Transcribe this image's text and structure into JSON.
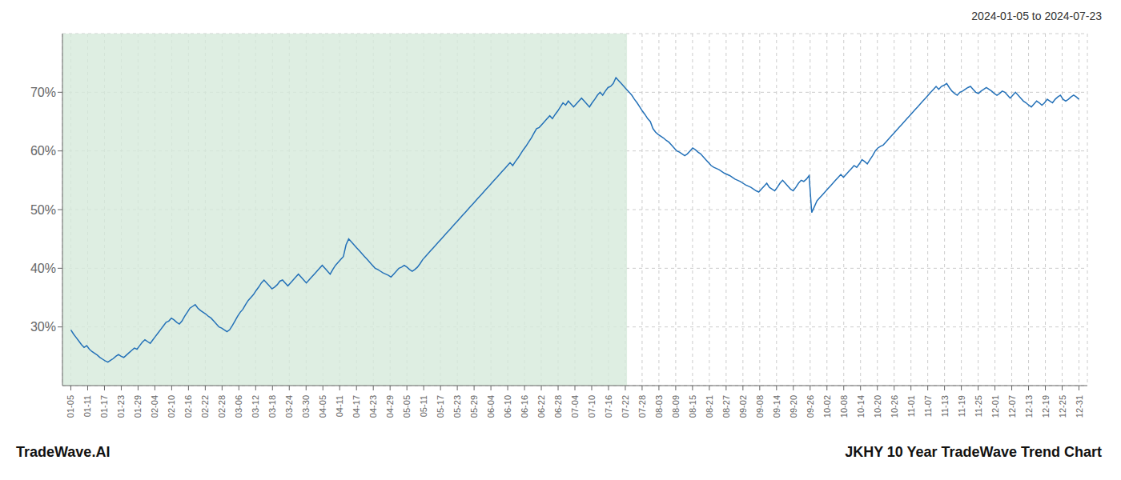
{
  "chart_data": {
    "type": "line",
    "title": "JKHY 10 Year TradeWave Trend Chart",
    "subtitle": "2024-01-05 to 2024-07-23",
    "annotations": [
      "TradeWave.AI"
    ],
    "color": "#2471b8",
    "grid": true,
    "xlim": [
      -0.5,
      60.5
    ],
    "xticks": [
      {
        "value": 0,
        "label": "01-05"
      },
      {
        "value": 1,
        "label": "01-11"
      },
      {
        "value": 2,
        "label": "01-17"
      },
      {
        "value": 3,
        "label": "01-23"
      },
      {
        "value": 4,
        "label": "01-29"
      },
      {
        "value": 5,
        "label": "02-04"
      },
      {
        "value": 6,
        "label": "02-10"
      },
      {
        "value": 7,
        "label": "02-16"
      },
      {
        "value": 8,
        "label": "02-22"
      },
      {
        "value": 9,
        "label": "02-28"
      },
      {
        "value": 10,
        "label": "03-06"
      },
      {
        "value": 11,
        "label": "03-12"
      },
      {
        "value": 12,
        "label": "03-18"
      },
      {
        "value": 13,
        "label": "03-24"
      },
      {
        "value": 14,
        "label": "03-30"
      },
      {
        "value": 15,
        "label": "04-05"
      },
      {
        "value": 16,
        "label": "04-11"
      },
      {
        "value": 17,
        "label": "04-17"
      },
      {
        "value": 18,
        "label": "04-23"
      },
      {
        "value": 19,
        "label": "04-29"
      },
      {
        "value": 20,
        "label": "05-05"
      },
      {
        "value": 21,
        "label": "05-11"
      },
      {
        "value": 22,
        "label": "05-17"
      },
      {
        "value": 23,
        "label": "05-23"
      },
      {
        "value": 24,
        "label": "05-29"
      },
      {
        "value": 25,
        "label": "06-04"
      },
      {
        "value": 26,
        "label": "06-10"
      },
      {
        "value": 27,
        "label": "06-16"
      },
      {
        "value": 28,
        "label": "06-22"
      },
      {
        "value": 29,
        "label": "06-28"
      },
      {
        "value": 30,
        "label": "07-04"
      },
      {
        "value": 31,
        "label": "07-10"
      },
      {
        "value": 32,
        "label": "07-16"
      },
      {
        "value": 33,
        "label": "07-22"
      },
      {
        "value": 34,
        "label": "07-28"
      },
      {
        "value": 35,
        "label": "08-03"
      },
      {
        "value": 36,
        "label": "08-09"
      },
      {
        "value": 37,
        "label": "08-15"
      },
      {
        "value": 38,
        "label": "08-21"
      },
      {
        "value": 39,
        "label": "08-27"
      },
      {
        "value": 40,
        "label": "09-02"
      },
      {
        "value": 41,
        "label": "09-08"
      },
      {
        "value": 42,
        "label": "09-14"
      },
      {
        "value": 43,
        "label": "09-20"
      },
      {
        "value": 44,
        "label": "09-26"
      },
      {
        "value": 45,
        "label": "10-02"
      },
      {
        "value": 46,
        "label": "10-08"
      },
      {
        "value": 47,
        "label": "10-14"
      },
      {
        "value": 48,
        "label": "10-20"
      },
      {
        "value": 49,
        "label": "10-26"
      },
      {
        "value": 50,
        "label": "11-01"
      },
      {
        "value": 51,
        "label": "11-07"
      },
      {
        "value": 52,
        "label": "11-13"
      },
      {
        "value": 53,
        "label": "11-19"
      },
      {
        "value": 54,
        "label": "11-25"
      },
      {
        "value": 55,
        "label": "12-01"
      },
      {
        "value": 56,
        "label": "12-07"
      },
      {
        "value": 57,
        "label": "12-13"
      },
      {
        "value": 58,
        "label": "12-19"
      },
      {
        "value": 59,
        "label": "12-25"
      },
      {
        "value": 60,
        "label": "12-31"
      }
    ],
    "ylim": [
      20,
      80
    ],
    "yticks": [
      {
        "value": 30,
        "label": "30%"
      },
      {
        "value": 40,
        "label": "40%"
      },
      {
        "value": 50,
        "label": "50%"
      },
      {
        "value": 60,
        "label": "60%"
      },
      {
        "value": 70,
        "label": "70%"
      }
    ],
    "shade": {
      "xlim": [
        -0.5,
        33.1
      ],
      "color": "#d6eadb"
    },
    "values": [
      29.5,
      28.8,
      28.2,
      27.6,
      27.0,
      26.5,
      26.8,
      26.2,
      25.8,
      25.5,
      25.2,
      24.8,
      24.5,
      24.2,
      24.0,
      24.3,
      24.6,
      25.0,
      25.3,
      25.0,
      24.8,
      25.2,
      25.6,
      26.0,
      26.4,
      26.2,
      26.8,
      27.4,
      27.8,
      27.5,
      27.2,
      27.8,
      28.4,
      29.0,
      29.6,
      30.2,
      30.8,
      31.0,
      31.5,
      31.2,
      30.8,
      30.5,
      31.0,
      31.8,
      32.5,
      33.2,
      33.5,
      33.8,
      33.2,
      32.8,
      32.5,
      32.2,
      31.8,
      31.5,
      31.0,
      30.5,
      30.0,
      29.8,
      29.5,
      29.2,
      29.5,
      30.2,
      31.0,
      31.8,
      32.5,
      33.0,
      33.8,
      34.5,
      35.0,
      35.5,
      36.2,
      36.8,
      37.5,
      38.0,
      37.5,
      37.0,
      36.5,
      36.8,
      37.2,
      37.8,
      38.0,
      37.5,
      37.0,
      37.5,
      38.0,
      38.5,
      39.0,
      38.5,
      38.0,
      37.5,
      38.0,
      38.5,
      39.0,
      39.5,
      40.0,
      40.5,
      40.0,
      39.5,
      39.0,
      39.8,
      40.5,
      41.0,
      41.5,
      42.0,
      44.0,
      45.0,
      44.5,
      44.0,
      43.5,
      43.0,
      42.5,
      42.0,
      41.5,
      41.0,
      40.5,
      40.0,
      39.8,
      39.5,
      39.2,
      39.0,
      38.8,
      38.5,
      39.0,
      39.5,
      40.0,
      40.2,
      40.5,
      40.2,
      39.8,
      39.5,
      39.8,
      40.2,
      40.8,
      41.5,
      42.0,
      42.5,
      43.0,
      43.5,
      44.0,
      44.5,
      45.0,
      45.5,
      46.0,
      46.5,
      47.0,
      47.5,
      48.0,
      48.5,
      49.0,
      49.5,
      50.0,
      50.5,
      51.0,
      51.5,
      52.0,
      52.5,
      53.0,
      53.5,
      54.0,
      54.5,
      55.0,
      55.5,
      56.0,
      56.5,
      57.0,
      57.5,
      58.0,
      57.5,
      58.2,
      58.8,
      59.5,
      60.2,
      60.8,
      61.5,
      62.2,
      63.0,
      63.8,
      64.0,
      64.5,
      65.0,
      65.5,
      66.0,
      65.5,
      66.2,
      66.8,
      67.5,
      68.2,
      67.8,
      68.5,
      68.0,
      67.5,
      68.0,
      68.5,
      69.0,
      68.5,
      68.0,
      67.5,
      68.2,
      68.8,
      69.5,
      70.0,
      69.5,
      70.2,
      70.8,
      71.0,
      71.5,
      72.5,
      72.0,
      71.5,
      71.0,
      70.5,
      70.0,
      69.5,
      68.8,
      68.2,
      67.5,
      66.8,
      66.2,
      65.5,
      65.0,
      63.8,
      63.2,
      62.8,
      62.5,
      62.2,
      61.8,
      61.5,
      61.0,
      60.5,
      60.0,
      59.8,
      59.5,
      59.2,
      59.5,
      60.0,
      60.5,
      60.2,
      59.8,
      59.5,
      59.0,
      58.5,
      58.0,
      57.5,
      57.2,
      57.0,
      56.8,
      56.5,
      56.2,
      56.0,
      55.8,
      55.5,
      55.2,
      55.0,
      54.8,
      54.5,
      54.2,
      54.0,
      53.8,
      53.5,
      53.2,
      53.0,
      53.5,
      54.0,
      54.5,
      53.8,
      53.5,
      53.2,
      53.8,
      54.5,
      55.0,
      54.5,
      54.0,
      53.5,
      53.2,
      53.8,
      54.5,
      55.0,
      54.8,
      55.2,
      55.8,
      49.5,
      50.5,
      51.5,
      52.0,
      52.5,
      53.0,
      53.5,
      54.0,
      54.5,
      55.0,
      55.5,
      56.0,
      55.5,
      56.0,
      56.5,
      57.0,
      57.5,
      57.2,
      57.8,
      58.5,
      58.2,
      57.8,
      58.5,
      59.2,
      60.0,
      60.5,
      60.8,
      61.0,
      61.5,
      62.0,
      62.5,
      63.0,
      63.5,
      64.0,
      64.5,
      65.0,
      65.5,
      66.0,
      66.5,
      67.0,
      67.5,
      68.0,
      68.5,
      69.0,
      69.5,
      70.0,
      70.5,
      71.0,
      70.5,
      71.0,
      71.2,
      71.5,
      70.8,
      70.2,
      69.8,
      69.5,
      70.0,
      70.2,
      70.5,
      70.8,
      71.0,
      70.5,
      70.0,
      69.8,
      70.2,
      70.5,
      70.8,
      70.5,
      70.2,
      69.8,
      69.5,
      69.8,
      70.2,
      70.0,
      69.5,
      69.0,
      69.5,
      70.0,
      69.5,
      69.0,
      68.5,
      68.2,
      67.8,
      67.5,
      68.0,
      68.5,
      68.2,
      67.8,
      68.2,
      68.8,
      68.5,
      68.2,
      68.8,
      69.2,
      69.5,
      68.8,
      68.5,
      68.8,
      69.2,
      69.5,
      69.2,
      68.8
    ]
  }
}
